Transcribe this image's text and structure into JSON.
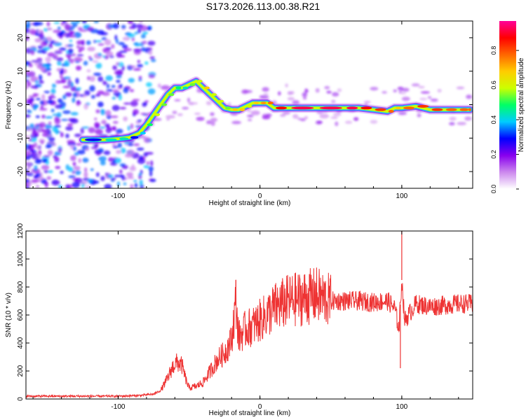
{
  "chart_data": [
    {
      "type": "heatmap",
      "title": "S173.2026.113.00.38.R21",
      "xlabel": "Height of straight line (km)",
      "ylabel": "Frequency (Hz)",
      "xlim": [
        -165,
        150
      ],
      "ylim": [
        -25,
        25
      ],
      "xticks": [
        -100,
        0,
        100
      ],
      "yticks": [
        20,
        10,
        0,
        -10,
        -20
      ],
      "colorbar": {
        "label": "Normalized spectral amplitude",
        "range": [
          0,
          0.97
        ],
        "ticks": [
          0.0,
          0.2,
          0.4,
          0.6,
          0.8
        ],
        "colors": [
          "#ffffff",
          "#cc88ee",
          "#8800ee",
          "#0000ff",
          "#00ccff",
          "#00ff66",
          "#ccff00",
          "#ffcc00",
          "#ff6600",
          "#ff0000",
          "#ff0099"
        ]
      },
      "ridge": {
        "x": [
          -125,
          -110,
          -100,
          -92,
          -85,
          -80,
          -75,
          -70,
          -65,
          -60,
          -55,
          -50,
          -45,
          -40,
          -35,
          -30,
          -25,
          -20,
          -15,
          -10,
          -5,
          0,
          5,
          10,
          20,
          40,
          60,
          70,
          80,
          90,
          95,
          100,
          110,
          120,
          130,
          140,
          148
        ],
        "y": [
          -10.5,
          -10.5,
          -10.2,
          -9.8,
          -8.5,
          -6,
          -3,
          0,
          3,
          5,
          5,
          6,
          7,
          5,
          3,
          1,
          -1,
          -1.5,
          -1.5,
          -0.5,
          0.5,
          0.5,
          0.5,
          -1,
          -1,
          -1,
          -1,
          -1,
          -1.5,
          -2,
          -1,
          -1,
          -0.5,
          -1.5,
          -1.5,
          -1.5,
          -1.5
        ],
        "amplitude": [
          0.3,
          0.45,
          0.45,
          0.3,
          0.4,
          0.5,
          0.6,
          0.55,
          0.55,
          0.5,
          0.45,
          0.55,
          0.6,
          0.7,
          0.6,
          0.6,
          0.55,
          0.7,
          0.7,
          0.6,
          0.7,
          0.75,
          0.8,
          0.9,
          0.95,
          0.95,
          0.95,
          0.9,
          0.85,
          0.8,
          0.7,
          0.8,
          0.85,
          0.85,
          0.8,
          0.8,
          0.8
        ]
      }
    },
    {
      "type": "line",
      "xlabel": "Height of straight line (km)",
      "ylabel": "SNR (10 * v/v)",
      "xlim": [
        -165,
        150
      ],
      "ylim": [
        0,
        1200
      ],
      "xticks": [
        -100,
        0,
        100
      ],
      "yticks": [
        0,
        200,
        400,
        600,
        800,
        1000,
        1200
      ],
      "color": "#ee3333",
      "series": [
        {
          "name": "SNR",
          "x": [
            -165,
            -140,
            -120,
            -100,
            -85,
            -75,
            -70,
            -65,
            -62,
            -60,
            -58,
            -55,
            -52,
            -50,
            -45,
            -40,
            -35,
            -30,
            -25,
            -20,
            -17,
            -15,
            -10,
            -5,
            0,
            5,
            10,
            20,
            30,
            40,
            50,
            60,
            70,
            80,
            90,
            95,
            98,
            100,
            102,
            110,
            120,
            130,
            140,
            150
          ],
          "y": [
            20,
            20,
            20,
            20,
            25,
            35,
            60,
            150,
            220,
            250,
            260,
            240,
            130,
            80,
            90,
            120,
            200,
            280,
            330,
            420,
            700,
            440,
            500,
            520,
            560,
            600,
            650,
            700,
            720,
            740,
            700,
            700,
            700,
            690,
            700,
            650,
            500,
            850,
            560,
            680,
            660,
            670,
            680,
            680
          ]
        }
      ],
      "spikes": [
        {
          "x": -17,
          "y": 850
        },
        {
          "x": 100,
          "y": 1200
        },
        {
          "x": 99,
          "y": 220
        }
      ]
    }
  ]
}
